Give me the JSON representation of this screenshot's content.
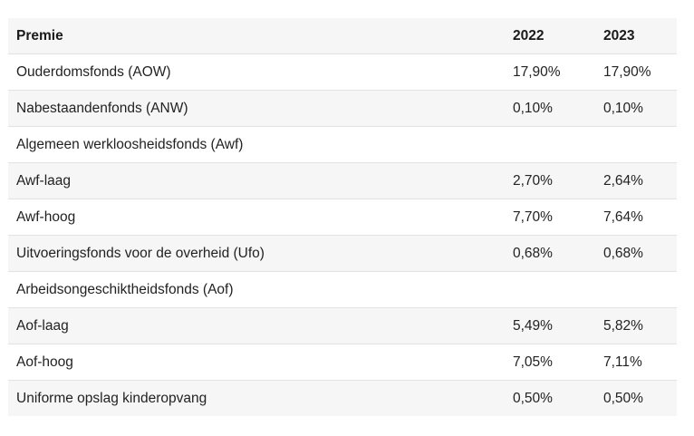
{
  "table": {
    "headers": [
      "Premie",
      "2022",
      "2023"
    ],
    "rows": [
      {
        "name": "Ouderdomsfonds (AOW)",
        "y2022": "17,90%",
        "y2023": "17,90%"
      },
      {
        "name": "Nabestaandenfonds (ANW)",
        "y2022": "0,10%",
        "y2023": "0,10%"
      },
      {
        "name": "Algemeen werkloosheidsfonds (Awf)",
        "y2022": "",
        "y2023": ""
      },
      {
        "name": "Awf-laag",
        "y2022": "2,70%",
        "y2023": "2,64%"
      },
      {
        "name": "Awf-hoog",
        "y2022": "7,70%",
        "y2023": "7,64%"
      },
      {
        "name": "Uitvoeringsfonds voor de overheid (Ufo)",
        "y2022": "0,68%",
        "y2023": "0,68%"
      },
      {
        "name": "Arbeidsongeschiktheidsfonds (Aof)",
        "y2022": "",
        "y2023": ""
      },
      {
        "name": "Aof-laag",
        "y2022": "5,49%",
        "y2023": "5,82%"
      },
      {
        "name": "Aof-hoog",
        "y2022": "7,05%",
        "y2023": "7,11%"
      },
      {
        "name": "Uniforme opslag kinderopvang",
        "y2022": "0,50%",
        "y2023": "0,50%"
      }
    ]
  }
}
